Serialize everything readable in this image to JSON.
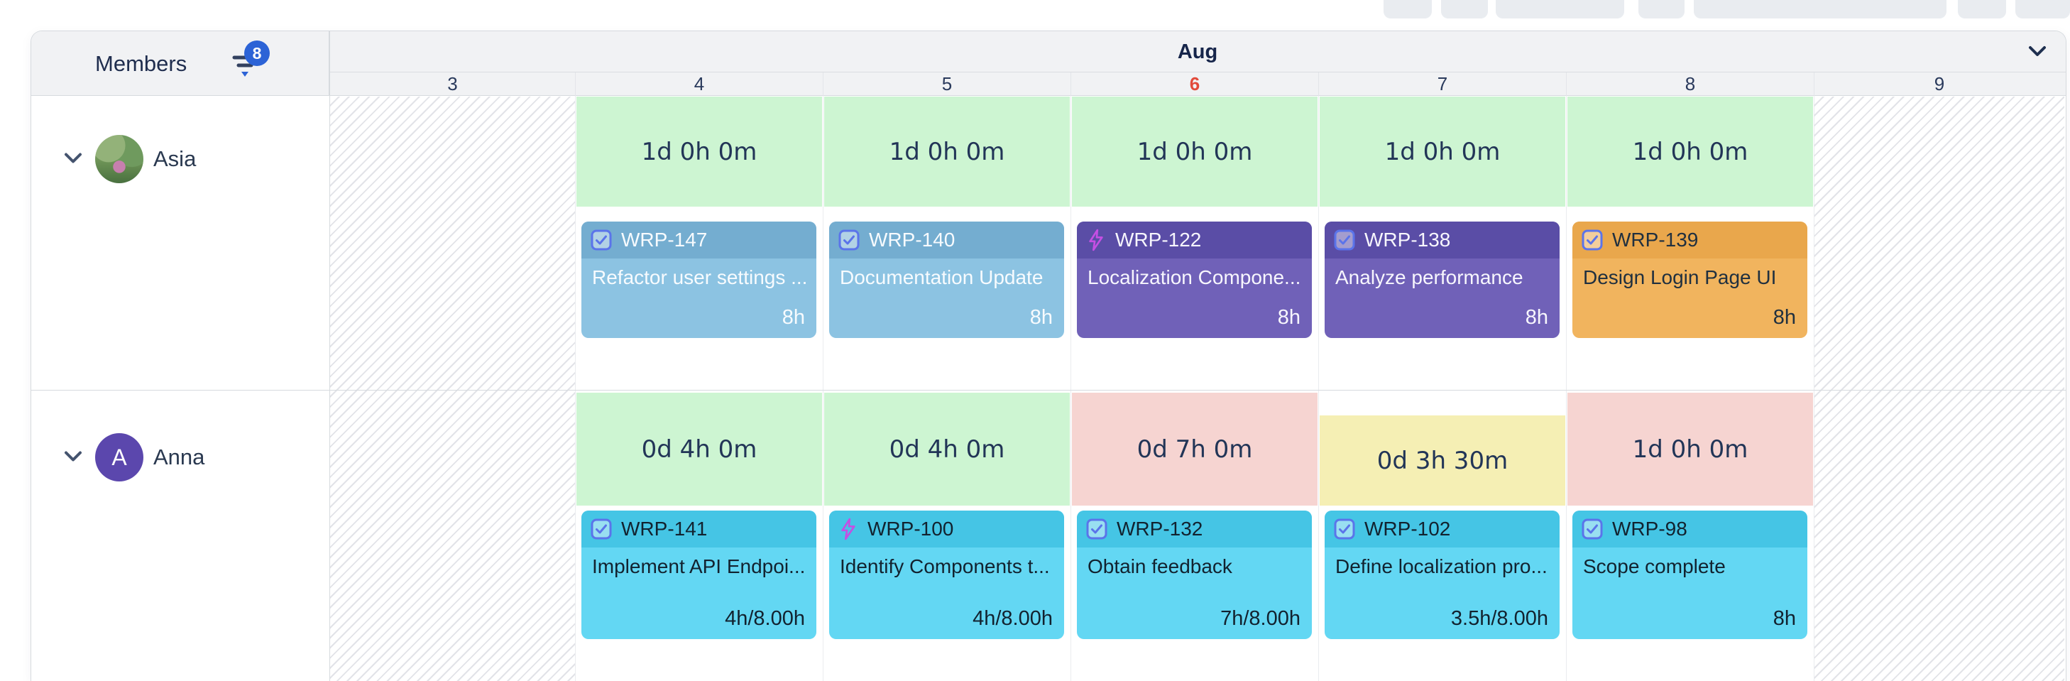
{
  "members_panel": {
    "title": "Members",
    "filter_badge": "8"
  },
  "timeline_header": {
    "month": "Aug"
  },
  "days": [
    {
      "label": "3",
      "type": "weekend"
    },
    {
      "label": "4",
      "type": "workday"
    },
    {
      "label": "5",
      "type": "workday"
    },
    {
      "label": "6",
      "type": "today"
    },
    {
      "label": "7",
      "type": "workday"
    },
    {
      "label": "8",
      "type": "workday"
    },
    {
      "label": "9",
      "type": "weekend"
    }
  ],
  "rows": [
    {
      "member": {
        "name": "Asia",
        "avatar_type": "photo"
      },
      "capacity": [
        {
          "day": "4",
          "text": "1d 0h 0m",
          "color": "green"
        },
        {
          "day": "5",
          "text": "1d 0h 0m",
          "color": "green"
        },
        {
          "day": "6",
          "text": "1d 0h 0m",
          "color": "green"
        },
        {
          "day": "7",
          "text": "1d 0h 0m",
          "color": "green"
        },
        {
          "day": "8",
          "text": "1d 0h 0m",
          "color": "green"
        }
      ],
      "tasks": [
        {
          "day": "4",
          "key": "WRP-147",
          "icon": "task-checkbox",
          "title": "Refactor user settings ...",
          "hours": "8h",
          "color": "blue"
        },
        {
          "day": "5",
          "key": "WRP-140",
          "icon": "task-checkbox",
          "title": "Documentation Update",
          "hours": "8h",
          "color": "blue"
        },
        {
          "day": "6",
          "key": "WRP-122",
          "icon": "lightning",
          "title": "Localization Compone...",
          "hours": "8h",
          "color": "purple"
        },
        {
          "day": "7",
          "key": "WRP-138",
          "icon": "task-checkbox",
          "title": "Analyze performance",
          "hours": "8h",
          "color": "purple"
        },
        {
          "day": "8",
          "key": "WRP-139",
          "icon": "task-checkbox",
          "title": "Design Login Page UI",
          "hours": "8h",
          "color": "orange"
        }
      ]
    },
    {
      "member": {
        "name": "Anna",
        "avatar_type": "initial",
        "initial": "A",
        "avatar_color": "#5b47ad"
      },
      "capacity": [
        {
          "day": "4",
          "text": "0d 4h 0m",
          "color": "green"
        },
        {
          "day": "5",
          "text": "0d 4h 0m",
          "color": "green"
        },
        {
          "day": "6",
          "text": "0d 7h 0m",
          "color": "pink"
        },
        {
          "day": "7",
          "text": "0d 3h 30m",
          "color": "yellow",
          "top_gap": true
        },
        {
          "day": "8",
          "text": "1d 0h 0m",
          "color": "pink"
        }
      ],
      "tasks": [
        {
          "day": "4",
          "key": "WRP-141",
          "icon": "task-checkbox",
          "title": "Implement API Endpoi...",
          "hours": "4h/8.00h",
          "color": "cyan"
        },
        {
          "day": "5",
          "key": "WRP-100",
          "icon": "lightning",
          "title": "Identify Components t...",
          "hours": "4h/8.00h",
          "color": "cyan"
        },
        {
          "day": "6",
          "key": "WRP-132",
          "icon": "task-checkbox",
          "title": "Obtain feedback",
          "hours": "7h/8.00h",
          "color": "cyan"
        },
        {
          "day": "7",
          "key": "WRP-102",
          "icon": "task-checkbox",
          "title": "Define localization pro...",
          "hours": "3.5h/8.00h",
          "color": "cyan"
        },
        {
          "day": "8",
          "key": "WRP-98",
          "icon": "task-checkbox",
          "title": "Scope complete",
          "hours": "8h",
          "color": "cyan"
        }
      ]
    }
  ],
  "colors": {
    "capacity_green": "#cdf5d2",
    "capacity_pink": "#f6d4d1",
    "capacity_yellow": "#f5efb4",
    "card_blue_header": "#74add0",
    "card_blue_body": "#8cc3e2",
    "card_purple_header": "#5a4da6",
    "card_purple_body": "#7061b8",
    "card_orange_header": "#e9a74c",
    "card_orange_body": "#f1b45e",
    "card_cyan_header": "#45c5e5",
    "card_cyan_body": "#63d7f3",
    "badge_blue": "#2c63d6",
    "today_red": "#e24a3b",
    "navy_text": "#22355a",
    "header_gray": "#f1f2f4"
  }
}
